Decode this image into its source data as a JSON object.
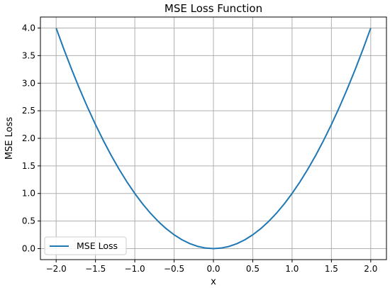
{
  "chart_data": {
    "type": "line",
    "title": "MSE Loss Function",
    "xlabel": "x",
    "ylabel": "MSE Loss",
    "xlim": [
      -2.2,
      2.2
    ],
    "ylim": [
      -0.2,
      4.2
    ],
    "xticks": [
      -2.0,
      -1.5,
      -1.0,
      -0.5,
      0.0,
      0.5,
      1.0,
      1.5,
      2.0
    ],
    "xtick_labels": [
      "−2.0",
      "−1.5",
      "−1.0",
      "−0.5",
      "0.0",
      "0.5",
      "1.0",
      "1.5",
      "2.0"
    ],
    "yticks": [
      0.0,
      0.5,
      1.0,
      1.5,
      2.0,
      2.5,
      3.0,
      3.5,
      4.0
    ],
    "ytick_labels": [
      "0.0",
      "0.5",
      "1.0",
      "1.5",
      "2.0",
      "2.5",
      "3.0",
      "3.5",
      "4.0"
    ],
    "grid": true,
    "legend_position": "lower-left",
    "series": [
      {
        "name": "MSE Loss",
        "color": "#1f77b4",
        "x": [
          -2.0,
          -1.9,
          -1.8,
          -1.7,
          -1.6,
          -1.5,
          -1.4,
          -1.3,
          -1.2,
          -1.1,
          -1.0,
          -0.9,
          -0.8,
          -0.7,
          -0.6,
          -0.5,
          -0.4,
          -0.3,
          -0.2,
          -0.1,
          0.0,
          0.1,
          0.2,
          0.3,
          0.4,
          0.5,
          0.6,
          0.7,
          0.8,
          0.9,
          1.0,
          1.1,
          1.2,
          1.3,
          1.4,
          1.5,
          1.6,
          1.7,
          1.8,
          1.9,
          2.0
        ],
        "y": [
          4.0,
          3.61,
          3.24,
          2.89,
          2.56,
          2.25,
          1.96,
          1.69,
          1.44,
          1.21,
          1.0,
          0.81,
          0.64,
          0.49,
          0.36,
          0.25,
          0.16,
          0.09,
          0.04,
          0.01,
          0.0,
          0.01,
          0.04,
          0.09,
          0.16,
          0.25,
          0.36,
          0.49,
          0.64,
          0.81,
          1.0,
          1.21,
          1.44,
          1.69,
          1.96,
          2.25,
          2.56,
          2.89,
          3.24,
          3.61,
          4.0
        ]
      }
    ]
  }
}
